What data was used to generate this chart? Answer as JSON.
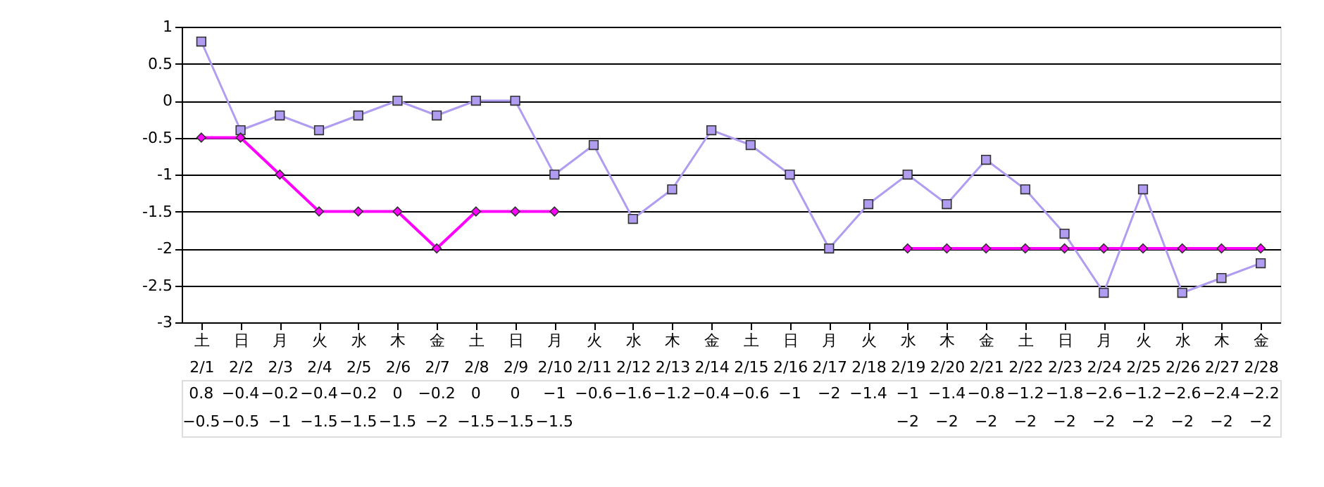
{
  "chart_data": {
    "type": "line",
    "categories": [
      "土 2/1",
      "日 2/2",
      "月 2/3",
      "火 2/4",
      "水 2/5",
      "木 2/6",
      "金 2/7",
      "土 2/8",
      "日 2/9",
      "月 2/10",
      "火 2/11",
      "水 2/12",
      "木 2/13",
      "金 2/14",
      "土 2/15",
      "日 2/16",
      "月 2/17",
      "火 2/18",
      "水 2/19",
      "木 2/20",
      "金 2/21",
      "土 2/22",
      "日 2/23",
      "月 2/24",
      "火 2/25",
      "水 2/26",
      "木 2/27",
      "金 2/28"
    ],
    "series": [
      {
        "color": "#b09cf0",
        "marker": "square",
        "values": [
          0.8,
          -0.4,
          -0.2,
          -0.4,
          -0.2,
          0,
          -0.2,
          0,
          0,
          -1,
          -0.6,
          -1.6,
          -1.2,
          -0.4,
          -0.6,
          -1,
          -2,
          -1.4,
          -1,
          -1.4,
          -0.8,
          -1.2,
          -1.8,
          -2.6,
          -1.2,
          -2.6,
          -2.4,
          -2.2
        ]
      },
      {
        "color": "#ff00ff",
        "marker": "diamond",
        "values": [
          -0.5,
          -0.5,
          -1,
          -1.5,
          -1.5,
          -1.5,
          -2,
          -1.5,
          -1.5,
          -1.5,
          null,
          null,
          null,
          null,
          null,
          null,
          null,
          null,
          -2,
          -2,
          -2,
          -2,
          -2,
          -2,
          -2,
          -2,
          -2,
          -2
        ]
      }
    ],
    "ylim": [
      -3,
      1
    ],
    "yticks": [
      -3,
      -2.5,
      -2,
      -1.5,
      -1,
      -0.5,
      0,
      0.5,
      1
    ],
    "grid": "y",
    "data_labels": true
  }
}
